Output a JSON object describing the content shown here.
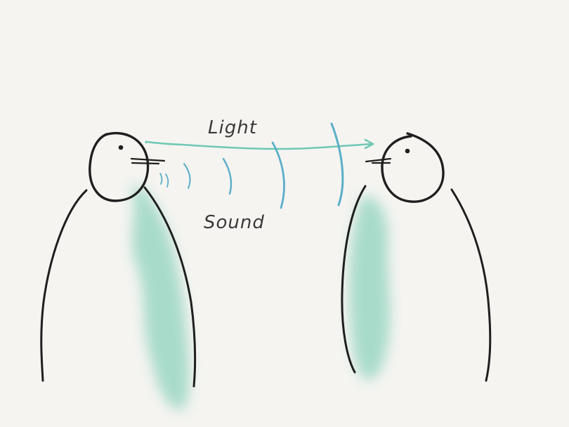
{
  "labels": {
    "light": "Light",
    "sound": "Sound"
  },
  "colors": {
    "background": "#f5f4f1",
    "ink": "#1f1f1f",
    "light_arrow": "#6fc8b4",
    "sound_waves": "#5aaec9",
    "body_fill": "#8fd3be"
  }
}
